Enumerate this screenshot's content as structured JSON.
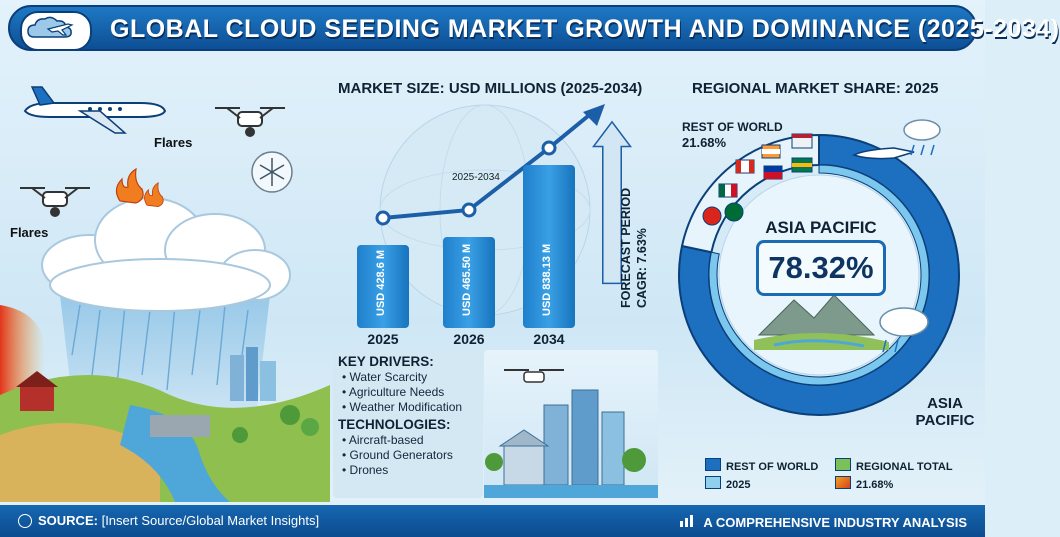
{
  "header": {
    "title": "GLOBAL CLOUD SEEDING MARKET GROWTH AND DOMINANCE (2025-2034)"
  },
  "left_scene": {
    "flare_label_top": "Flares",
    "flare_label_left": "Flares"
  },
  "chart_section": {
    "title": "MARKET SIZE: USD MILLIONS (2025-2034)",
    "trend_note": "2025-2034",
    "forecast_line1": "FORECAST PERIOD",
    "forecast_line2": "CAGR: 7.63%"
  },
  "chart_data": {
    "type": "bar",
    "title": "MARKET SIZE: USD MILLIONS (2025-2034)",
    "categories": [
      "2025",
      "2026",
      "2034"
    ],
    "values": [
      428.6,
      465.5,
      838.13
    ],
    "value_labels": [
      "USD 428.6 M",
      "USD 465.50 M",
      "USD 838.13 M"
    ],
    "ylim": [
      0,
      900
    ],
    "cagr": "7.63%"
  },
  "drivers": {
    "heading": "KEY DRIVERS:",
    "items": [
      "Water Scarcity",
      "Agriculture Needs",
      "Weather Modification"
    ],
    "tech_heading": "TECHNOLOGIES:",
    "tech_items": [
      "Aircraft-based",
      "Ground Generators",
      "Drones"
    ]
  },
  "regional": {
    "title": "REGIONAL MARKET SHARE: 2025",
    "rest_label": "REST OF WORLD",
    "rest_value": "21.68%",
    "asia_label": "ASIA PACIFIC",
    "asia_value": "78.32%",
    "asia_bottom_line1": "ASIA",
    "asia_bottom_line2": "PACIFIC",
    "share_asia": 78.32,
    "share_rest": 21.68
  },
  "legend": {
    "items": [
      {
        "label": "REST OF WORLD",
        "color": "#1d6fc0"
      },
      {
        "label": "REGIONAL TOTAL",
        "color": "#7cc05a"
      },
      {
        "label": "2025",
        "color": "#8fd0ef"
      },
      {
        "label": "21.68%",
        "color": "#f2a21f"
      }
    ]
  },
  "footer": {
    "source_label": "SOURCE:",
    "source_text": "[Insert Source/Global Market Insights]",
    "right_text": "A COMPREHENSIVE INDUSTRY ANALYSIS"
  },
  "colors": {
    "header_blue": "#0d4f95",
    "bar_blue": "#2a8ed8",
    "donut_dark": "#1d6fc0",
    "donut_light": "#6dc3ec",
    "arrow_blue": "#1c5fa8"
  },
  "icons": [
    "cloud-airplane-logo-icon",
    "airplane-icon",
    "drone-icon",
    "snowflake-icon",
    "globe-icon",
    "chart-icon",
    "flag-icon"
  ]
}
